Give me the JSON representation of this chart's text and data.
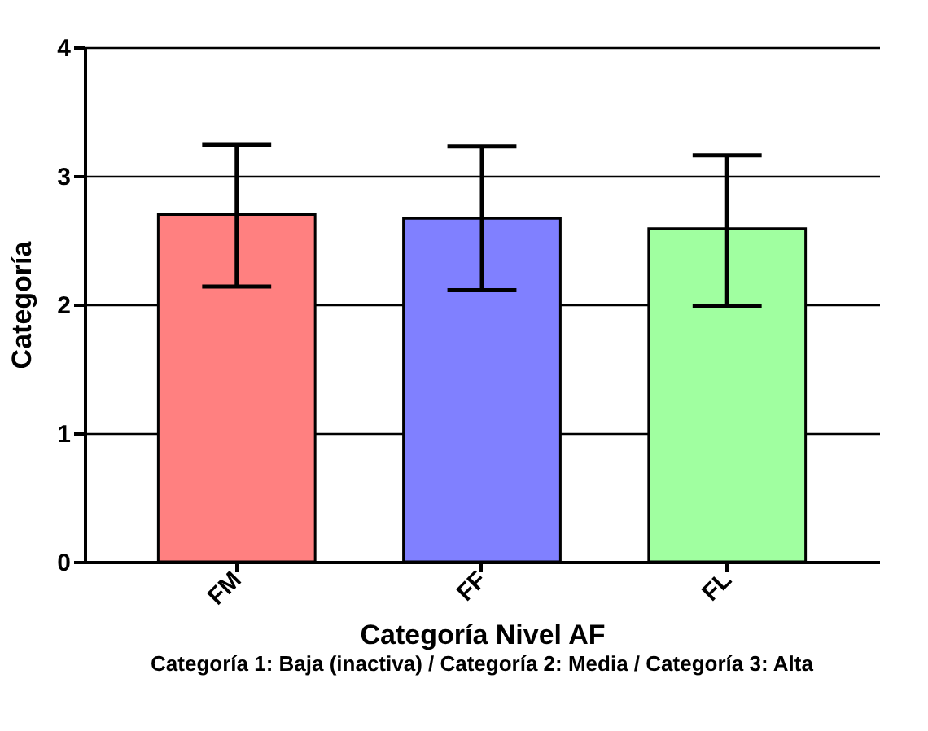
{
  "chart_data": {
    "type": "bar",
    "xlabel": "Categoría Nivel AF",
    "ylabel": "Categoría",
    "categories": [
      "FM",
      "FF",
      "FL"
    ],
    "values": [
      2.7,
      2.67,
      2.59
    ],
    "colors": [
      "#ff8080",
      "#8080ff",
      "#a0ffa0"
    ],
    "errors": [
      [
        2.14,
        3.24
      ],
      [
        2.11,
        3.23
      ],
      [
        1.99,
        3.16
      ]
    ],
    "ylim": [
      0,
      4
    ],
    "yticks": [
      0,
      1,
      2,
      3,
      4
    ],
    "grid": "y",
    "annotations": [
      "Categoría 1: Baja (inactiva) / Categoría 2: Media / Categoría 3: Alta"
    ]
  }
}
